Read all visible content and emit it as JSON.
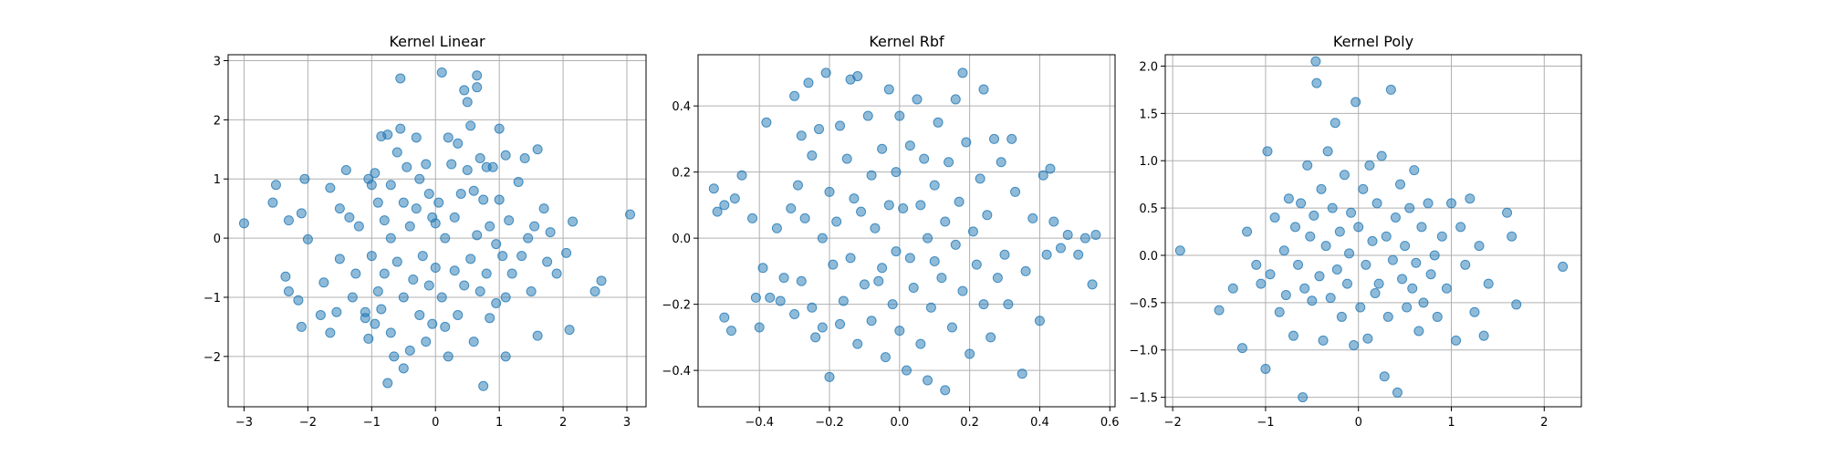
{
  "chart_data": [
    {
      "type": "scatter",
      "title": "Kernel Linear",
      "xlabel": "",
      "ylabel": "",
      "xlim": [
        -3.25,
        3.3
      ],
      "ylim": [
        -2.85,
        3.1
      ],
      "xticks": [
        -3,
        -2,
        -1,
        0,
        1,
        2,
        3
      ],
      "yticks": [
        -2,
        -1,
        0,
        1,
        2,
        3
      ],
      "grid": true,
      "color": "#1f77b4",
      "points": [
        [
          -3.0,
          0.25
        ],
        [
          -2.5,
          0.9
        ],
        [
          -2.55,
          0.6
        ],
        [
          -2.3,
          0.3
        ],
        [
          -2.35,
          -0.65
        ],
        [
          -2.3,
          -0.9
        ],
        [
          -2.15,
          -1.05
        ],
        [
          -2.1,
          -1.5
        ],
        [
          -2.05,
          1.0
        ],
        [
          -2.0,
          -0.02
        ],
        [
          -2.1,
          0.42
        ],
        [
          -1.8,
          -1.3
        ],
        [
          -1.75,
          -0.75
        ],
        [
          -1.65,
          0.85
        ],
        [
          -1.65,
          -1.6
        ],
        [
          -1.55,
          -1.25
        ],
        [
          -1.5,
          0.5
        ],
        [
          -1.5,
          -0.35
        ],
        [
          -1.4,
          1.15
        ],
        [
          -1.35,
          0.35
        ],
        [
          -1.3,
          -1.0
        ],
        [
          -1.25,
          -0.6
        ],
        [
          -1.2,
          0.2
        ],
        [
          -1.1,
          -1.35
        ],
        [
          -1.1,
          -1.25
        ],
        [
          -1.05,
          1.0
        ],
        [
          -1.05,
          -1.7
        ],
        [
          -1.0,
          0.9
        ],
        [
          -1.0,
          -0.3
        ],
        [
          -0.95,
          1.1
        ],
        [
          -0.95,
          -1.45
        ],
        [
          -0.9,
          0.6
        ],
        [
          -0.9,
          -0.9
        ],
        [
          -0.85,
          1.72
        ],
        [
          -0.85,
          -1.2
        ],
        [
          -0.8,
          0.3
        ],
        [
          -0.8,
          -0.6
        ],
        [
          -0.75,
          1.75
        ],
        [
          -0.75,
          -2.45
        ],
        [
          -0.7,
          -1.6
        ],
        [
          -0.7,
          0.0
        ],
        [
          -0.7,
          0.9
        ],
        [
          -0.65,
          -2.0
        ],
        [
          -0.6,
          1.45
        ],
        [
          -0.6,
          -0.4
        ],
        [
          -0.55,
          2.7
        ],
        [
          -0.55,
          1.85
        ],
        [
          -0.5,
          -2.2
        ],
        [
          -0.5,
          0.6
        ],
        [
          -0.5,
          -1.0
        ],
        [
          -0.45,
          1.2
        ],
        [
          -0.4,
          -1.9
        ],
        [
          -0.4,
          0.2
        ],
        [
          -0.35,
          -0.7
        ],
        [
          -0.3,
          1.7
        ],
        [
          -0.3,
          0.5
        ],
        [
          -0.25,
          -1.3
        ],
        [
          -0.25,
          1.0
        ],
        [
          -0.2,
          -0.3
        ],
        [
          -0.15,
          1.25
        ],
        [
          -0.15,
          -1.75
        ],
        [
          -0.1,
          0.75
        ],
        [
          -0.1,
          -0.8
        ],
        [
          -0.05,
          0.35
        ],
        [
          -0.05,
          -1.45
        ],
        [
          0.0,
          0.25
        ],
        [
          0.0,
          -0.5
        ],
        [
          0.05,
          0.6
        ],
        [
          0.1,
          2.8
        ],
        [
          0.1,
          -1.0
        ],
        [
          0.15,
          0.0
        ],
        [
          0.15,
          -1.5
        ],
        [
          0.2,
          1.7
        ],
        [
          0.2,
          -2.0
        ],
        [
          0.25,
          1.25
        ],
        [
          0.3,
          0.35
        ],
        [
          0.3,
          -0.55
        ],
        [
          0.35,
          1.6
        ],
        [
          0.35,
          -1.3
        ],
        [
          0.4,
          0.75
        ],
        [
          0.45,
          -0.8
        ],
        [
          0.45,
          2.5
        ],
        [
          0.5,
          2.3
        ],
        [
          0.5,
          1.15
        ],
        [
          0.55,
          -0.35
        ],
        [
          0.55,
          1.9
        ],
        [
          0.6,
          0.8
        ],
        [
          0.6,
          -1.75
        ],
        [
          0.65,
          2.75
        ],
        [
          0.65,
          2.55
        ],
        [
          0.65,
          0.05
        ],
        [
          0.7,
          1.35
        ],
        [
          0.7,
          -0.9
        ],
        [
          0.75,
          0.65
        ],
        [
          0.75,
          -2.5
        ],
        [
          0.8,
          1.2
        ],
        [
          0.8,
          -0.6
        ],
        [
          0.85,
          0.2
        ],
        [
          0.85,
          -1.35
        ],
        [
          0.9,
          1.2
        ],
        [
          0.95,
          -0.1
        ],
        [
          0.95,
          -1.1
        ],
        [
          1.0,
          1.85
        ],
        [
          1.0,
          0.65
        ],
        [
          1.05,
          -0.3
        ],
        [
          1.1,
          1.4
        ],
        [
          1.1,
          -2.0
        ],
        [
          1.1,
          -1.0
        ],
        [
          1.15,
          0.3
        ],
        [
          1.2,
          -0.6
        ],
        [
          1.3,
          0.95
        ],
        [
          1.35,
          -0.3
        ],
        [
          1.4,
          1.35
        ],
        [
          1.45,
          0.0
        ],
        [
          1.5,
          -0.9
        ],
        [
          1.55,
          0.2
        ],
        [
          1.6,
          1.5
        ],
        [
          1.6,
          -1.65
        ],
        [
          1.7,
          0.5
        ],
        [
          1.75,
          -0.4
        ],
        [
          1.8,
          0.1
        ],
        [
          1.9,
          -0.6
        ],
        [
          2.05,
          -0.25
        ],
        [
          2.1,
          -1.55
        ],
        [
          2.15,
          0.28
        ],
        [
          2.5,
          -0.9
        ],
        [
          2.6,
          -0.72
        ],
        [
          3.05,
          0.4
        ]
      ]
    },
    {
      "type": "scatter",
      "title": "Kernel Rbf",
      "xlabel": "",
      "ylabel": "",
      "xlim": [
        -0.575,
        0.615
      ],
      "ylim": [
        -0.51,
        0.555
      ],
      "xticks": [
        -0.4,
        -0.2,
        0.0,
        0.2,
        0.4,
        0.6
      ],
      "yticks": [
        -0.4,
        -0.2,
        0.0,
        0.2,
        0.4
      ],
      "grid": true,
      "color": "#1f77b4",
      "points": [
        [
          -0.53,
          0.15
        ],
        [
          -0.52,
          0.08
        ],
        [
          -0.5,
          0.1
        ],
        [
          -0.5,
          -0.24
        ],
        [
          -0.48,
          -0.28
        ],
        [
          -0.47,
          0.12
        ],
        [
          -0.45,
          0.19
        ],
        [
          -0.42,
          0.06
        ],
        [
          -0.41,
          -0.18
        ],
        [
          -0.4,
          -0.27
        ],
        [
          -0.39,
          -0.09
        ],
        [
          -0.38,
          0.35
        ],
        [
          -0.37,
          -0.18
        ],
        [
          -0.35,
          0.03
        ],
        [
          -0.34,
          -0.19
        ],
        [
          -0.33,
          -0.12
        ],
        [
          -0.31,
          0.09
        ],
        [
          -0.3,
          0.43
        ],
        [
          -0.3,
          -0.23
        ],
        [
          -0.29,
          0.16
        ],
        [
          -0.28,
          0.31
        ],
        [
          -0.28,
          -0.13
        ],
        [
          -0.27,
          0.06
        ],
        [
          -0.26,
          0.47
        ],
        [
          -0.25,
          0.25
        ],
        [
          -0.25,
          -0.21
        ],
        [
          -0.24,
          -0.3
        ],
        [
          -0.23,
          0.33
        ],
        [
          -0.22,
          0.0
        ],
        [
          -0.22,
          -0.27
        ],
        [
          -0.21,
          0.5
        ],
        [
          -0.2,
          0.14
        ],
        [
          -0.2,
          -0.42
        ],
        [
          -0.19,
          -0.08
        ],
        [
          -0.18,
          0.05
        ],
        [
          -0.17,
          0.34
        ],
        [
          -0.17,
          -0.26
        ],
        [
          -0.16,
          -0.19
        ],
        [
          -0.15,
          0.24
        ],
        [
          -0.14,
          0.48
        ],
        [
          -0.14,
          -0.06
        ],
        [
          -0.13,
          0.12
        ],
        [
          -0.12,
          0.49
        ],
        [
          -0.12,
          -0.32
        ],
        [
          -0.11,
          0.08
        ],
        [
          -0.1,
          -0.14
        ],
        [
          -0.09,
          0.37
        ],
        [
          -0.08,
          0.19
        ],
        [
          -0.08,
          -0.25
        ],
        [
          -0.07,
          0.03
        ],
        [
          -0.06,
          -0.13
        ],
        [
          -0.05,
          0.27
        ],
        [
          -0.05,
          -0.09
        ],
        [
          -0.04,
          -0.36
        ],
        [
          -0.03,
          0.45
        ],
        [
          -0.03,
          0.1
        ],
        [
          -0.02,
          -0.2
        ],
        [
          -0.01,
          0.2
        ],
        [
          -0.01,
          -0.04
        ],
        [
          0.0,
          0.37
        ],
        [
          0.0,
          -0.28
        ],
        [
          0.01,
          0.09
        ],
        [
          0.02,
          -0.4
        ],
        [
          0.03,
          0.28
        ],
        [
          0.03,
          -0.06
        ],
        [
          0.04,
          -0.15
        ],
        [
          0.05,
          0.42
        ],
        [
          0.06,
          0.1
        ],
        [
          0.06,
          -0.32
        ],
        [
          0.07,
          0.24
        ],
        [
          0.08,
          -0.43
        ],
        [
          0.08,
          0.0
        ],
        [
          0.09,
          -0.21
        ],
        [
          0.1,
          0.16
        ],
        [
          0.1,
          -0.07
        ],
        [
          0.11,
          0.35
        ],
        [
          0.12,
          -0.12
        ],
        [
          0.13,
          0.05
        ],
        [
          0.13,
          -0.46
        ],
        [
          0.14,
          0.23
        ],
        [
          0.15,
          -0.27
        ],
        [
          0.16,
          0.42
        ],
        [
          0.16,
          -0.02
        ],
        [
          0.17,
          0.11
        ],
        [
          0.18,
          0.5
        ],
        [
          0.18,
          -0.16
        ],
        [
          0.19,
          0.29
        ],
        [
          0.2,
          -0.35
        ],
        [
          0.21,
          0.02
        ],
        [
          0.22,
          -0.08
        ],
        [
          0.23,
          0.18
        ],
        [
          0.24,
          0.45
        ],
        [
          0.24,
          -0.2
        ],
        [
          0.25,
          0.07
        ],
        [
          0.26,
          -0.3
        ],
        [
          0.27,
          0.3
        ],
        [
          0.28,
          -0.12
        ],
        [
          0.29,
          0.23
        ],
        [
          0.3,
          -0.05
        ],
        [
          0.31,
          -0.2
        ],
        [
          0.32,
          0.3
        ],
        [
          0.33,
          0.14
        ],
        [
          0.35,
          -0.41
        ],
        [
          0.36,
          -0.1
        ],
        [
          0.38,
          0.06
        ],
        [
          0.4,
          -0.25
        ],
        [
          0.41,
          0.19
        ],
        [
          0.42,
          -0.05
        ],
        [
          0.43,
          0.21
        ],
        [
          0.44,
          0.05
        ],
        [
          0.46,
          -0.03
        ],
        [
          0.48,
          0.01
        ],
        [
          0.51,
          -0.05
        ],
        [
          0.53,
          0.0
        ],
        [
          0.55,
          -0.14
        ],
        [
          0.56,
          0.01
        ]
      ]
    },
    {
      "type": "scatter",
      "title": "Kernel Poly",
      "xlabel": "",
      "ylabel": "",
      "xlim": [
        -2.08,
        2.4
      ],
      "ylim": [
        -1.6,
        2.12
      ],
      "xticks": [
        -2,
        -1,
        0,
        1,
        2
      ],
      "yticks": [
        -1.5,
        -1.0,
        -0.5,
        0.0,
        0.5,
        1.0,
        1.5,
        2.0
      ],
      "grid": true,
      "color": "#1f77b4",
      "points": [
        [
          -1.92,
          0.05
        ],
        [
          -1.5,
          -0.58
        ],
        [
          -1.35,
          -0.35
        ],
        [
          -1.25,
          -0.98
        ],
        [
          -1.2,
          0.25
        ],
        [
          -1.1,
          -0.1
        ],
        [
          -1.05,
          -0.3
        ],
        [
          -1.0,
          -1.2
        ],
        [
          -0.98,
          1.1
        ],
        [
          -0.95,
          -0.2
        ],
        [
          -0.9,
          0.4
        ],
        [
          -0.85,
          -0.6
        ],
        [
          -0.8,
          0.05
        ],
        [
          -0.78,
          -0.42
        ],
        [
          -0.75,
          0.6
        ],
        [
          -0.7,
          -0.85
        ],
        [
          -0.68,
          0.3
        ],
        [
          -0.65,
          -0.1
        ],
        [
          -0.62,
          0.55
        ],
        [
          -0.6,
          -1.5
        ],
        [
          -0.58,
          -0.35
        ],
        [
          -0.55,
          0.95
        ],
        [
          -0.52,
          0.2
        ],
        [
          -0.5,
          -0.48
        ],
        [
          -0.48,
          0.42
        ],
        [
          -0.46,
          2.05
        ],
        [
          -0.45,
          1.82
        ],
        [
          -0.42,
          -0.22
        ],
        [
          -0.4,
          0.7
        ],
        [
          -0.38,
          -0.9
        ],
        [
          -0.35,
          0.1
        ],
        [
          -0.33,
          1.1
        ],
        [
          -0.3,
          -0.45
        ],
        [
          -0.28,
          0.5
        ],
        [
          -0.25,
          1.4
        ],
        [
          -0.23,
          -0.15
        ],
        [
          -0.2,
          0.25
        ],
        [
          -0.18,
          -0.65
        ],
        [
          -0.15,
          0.85
        ],
        [
          -0.12,
          -0.3
        ],
        [
          -0.1,
          0.02
        ],
        [
          -0.08,
          0.45
        ],
        [
          -0.05,
          -0.95
        ],
        [
          -0.03,
          1.62
        ],
        [
          0.0,
          0.3
        ],
        [
          0.02,
          -0.55
        ],
        [
          0.05,
          0.7
        ],
        [
          0.08,
          -0.1
        ],
        [
          0.1,
          -0.88
        ],
        [
          0.12,
          0.95
        ],
        [
          0.15,
          0.15
        ],
        [
          0.18,
          -0.4
        ],
        [
          0.2,
          0.55
        ],
        [
          0.22,
          -0.3
        ],
        [
          0.25,
          1.05
        ],
        [
          0.28,
          -1.28
        ],
        [
          0.3,
          0.2
        ],
        [
          0.32,
          -0.65
        ],
        [
          0.35,
          1.75
        ],
        [
          0.37,
          -0.05
        ],
        [
          0.4,
          0.4
        ],
        [
          0.42,
          -1.45
        ],
        [
          0.45,
          0.75
        ],
        [
          0.47,
          -0.25
        ],
        [
          0.5,
          0.1
        ],
        [
          0.52,
          -0.55
        ],
        [
          0.55,
          0.5
        ],
        [
          0.58,
          -0.35
        ],
        [
          0.6,
          0.9
        ],
        [
          0.62,
          -0.08
        ],
        [
          0.65,
          -0.8
        ],
        [
          0.68,
          0.3
        ],
        [
          0.7,
          -0.5
        ],
        [
          0.75,
          0.55
        ],
        [
          0.78,
          -0.2
        ],
        [
          0.82,
          0.0
        ],
        [
          0.85,
          -0.65
        ],
        [
          0.9,
          0.2
        ],
        [
          0.95,
          -0.35
        ],
        [
          1.0,
          0.55
        ],
        [
          1.05,
          -0.9
        ],
        [
          1.1,
          0.3
        ],
        [
          1.15,
          -0.1
        ],
        [
          1.2,
          0.6
        ],
        [
          1.25,
          -0.6
        ],
        [
          1.3,
          0.1
        ],
        [
          1.35,
          -0.85
        ],
        [
          1.4,
          -0.3
        ],
        [
          1.6,
          0.45
        ],
        [
          1.65,
          0.2
        ],
        [
          1.7,
          -0.52
        ],
        [
          2.2,
          -0.12
        ]
      ]
    }
  ]
}
